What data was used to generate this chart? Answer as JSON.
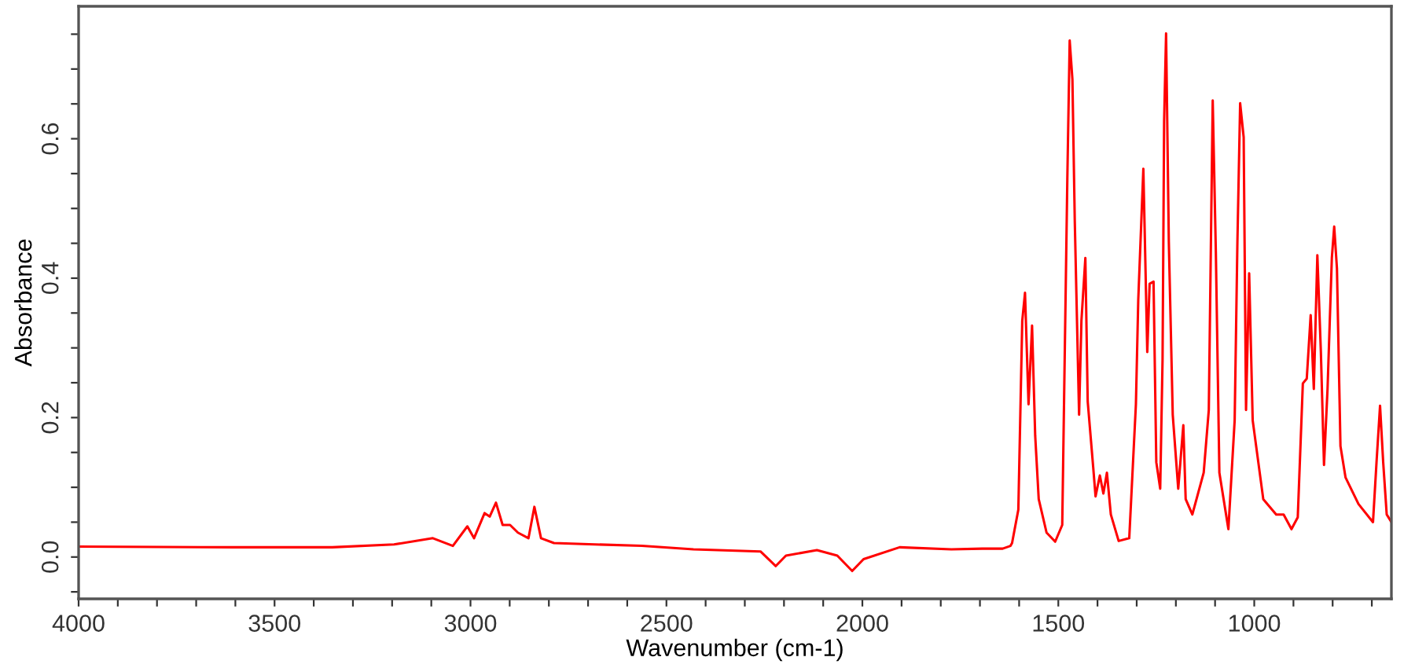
{
  "chart_data": {
    "type": "line",
    "xlabel": "Wavenumber (cm-1)",
    "ylabel": "Absorbance",
    "x": [
      4000,
      3600,
      3353,
      3195,
      3096,
      3045,
      3008,
      2991,
      2964,
      2951,
      2935,
      2918,
      2899,
      2879,
      2852,
      2837,
      2820,
      2787,
      2563,
      2431,
      2260,
      2221,
      2195,
      2116,
      2064,
      2026,
      1997,
      1905,
      1773,
      1694,
      1642,
      1622,
      1618,
      1602,
      1592,
      1585,
      1576,
      1567,
      1559,
      1550,
      1530,
      1508,
      1490,
      1477,
      1471,
      1464,
      1458,
      1447,
      1441,
      1431,
      1425,
      1411,
      1405,
      1394,
      1385,
      1376,
      1366,
      1346,
      1319,
      1302,
      1296,
      1283,
      1273,
      1267,
      1257,
      1250,
      1240,
      1234,
      1230,
      1225,
      1218,
      1208,
      1194,
      1181,
      1175,
      1158,
      1129,
      1116,
      1106,
      1098,
      1089,
      1066,
      1050,
      1043,
      1036,
      1027,
      1021,
      1013,
      1004,
      977,
      944,
      925,
      905,
      889,
      876,
      866,
      856,
      848,
      839,
      830,
      822,
      813,
      802,
      796,
      789,
      780,
      767,
      734,
      697,
      688,
      679,
      671,
      662,
      650
    ],
    "series": [
      {
        "color": "#ff0000",
        "values": [
          0.015,
          0.014,
          0.014,
          0.018,
          0.027,
          0.016,
          0.044,
          0.027,
          0.063,
          0.058,
          0.078,
          0.046,
          0.046,
          0.035,
          0.027,
          0.072,
          0.027,
          0.02,
          0.016,
          0.011,
          0.008,
          -0.013,
          0.002,
          0.01,
          0.002,
          -0.02,
          -0.003,
          0.014,
          0.011,
          0.012,
          0.012,
          0.016,
          0.02,
          0.068,
          0.339,
          0.379,
          0.219,
          0.332,
          0.174,
          0.083,
          0.035,
          0.022,
          0.046,
          0.542,
          0.741,
          0.685,
          0.482,
          0.204,
          0.339,
          0.429,
          0.223,
          0.129,
          0.087,
          0.117,
          0.091,
          0.121,
          0.061,
          0.023,
          0.027,
          0.219,
          0.369,
          0.557,
          0.294,
          0.392,
          0.395,
          0.136,
          0.098,
          0.283,
          0.625,
          0.751,
          0.452,
          0.204,
          0.098,
          0.189,
          0.083,
          0.061,
          0.121,
          0.211,
          0.655,
          0.437,
          0.121,
          0.04,
          0.196,
          0.452,
          0.651,
          0.602,
          0.211,
          0.407,
          0.196,
          0.083,
          0.061,
          0.061,
          0.04,
          0.057,
          0.249,
          0.256,
          0.347,
          0.241,
          0.433,
          0.294,
          0.132,
          0.241,
          0.429,
          0.474,
          0.414,
          0.159,
          0.114,
          0.076,
          0.05,
          0.136,
          0.217,
          0.136,
          0.061,
          0.05
        ]
      }
    ],
    "xlim": [
      4000,
      650
    ],
    "xticks": [
      4000,
      {
        "value": 3900,
        "label": null
      },
      {
        "value": 3800,
        "label": null
      },
      {
        "value": 3700,
        "label": null
      },
      {
        "value": 3600,
        "label": null
      },
      3500,
      {
        "value": 3400,
        "label": null
      },
      {
        "value": 3300,
        "label": null
      },
      {
        "value": 3200,
        "label": null
      },
      {
        "value": 3100,
        "label": null
      },
      3000,
      {
        "value": 2900,
        "label": null
      },
      {
        "value": 2800,
        "label": null
      },
      {
        "value": 2700,
        "label": null
      },
      {
        "value": 2600,
        "label": null
      },
      2500,
      {
        "value": 2400,
        "label": null
      },
      {
        "value": 2300,
        "label": null
      },
      {
        "value": 2200,
        "label": null
      },
      {
        "value": 2100,
        "label": null
      },
      2000,
      {
        "value": 1900,
        "label": null
      },
      {
        "value": 1800,
        "label": null
      },
      {
        "value": 1700,
        "label": null
      },
      {
        "value": 1600,
        "label": null
      },
      1500,
      {
        "value": 1400,
        "label": null
      },
      {
        "value": 1300,
        "label": null
      },
      {
        "value": 1200,
        "label": null
      },
      {
        "value": 1100,
        "label": null
      },
      1000,
      {
        "value": 900,
        "label": null
      },
      {
        "value": 800,
        "label": null
      },
      {
        "value": 700,
        "label": null
      }
    ],
    "ylim": [
      -0.06,
      0.79
    ],
    "yticks": [
      {
        "value": -0.05,
        "label": null
      },
      {
        "value": 0,
        "label": "0.0"
      },
      {
        "value": 0.05,
        "label": null
      },
      {
        "value": 0.1,
        "label": null
      },
      {
        "value": 0.15,
        "label": null
      },
      {
        "value": 0.2,
        "label": "0.2"
      },
      {
        "value": 0.25,
        "label": null
      },
      {
        "value": 0.3,
        "label": null
      },
      {
        "value": 0.35,
        "label": null
      },
      {
        "value": 0.4,
        "label": "0.4"
      },
      {
        "value": 0.45,
        "label": null
      },
      {
        "value": 0.5,
        "label": null
      },
      {
        "value": 0.55,
        "label": null
      },
      {
        "value": 0.6,
        "label": "0.6"
      },
      {
        "value": 0.65,
        "label": null
      },
      {
        "value": 0.7,
        "label": null
      },
      {
        "value": 0.75,
        "label": null
      }
    ],
    "grid": false,
    "legend": false,
    "marker": "none",
    "line_style": "solid"
  }
}
